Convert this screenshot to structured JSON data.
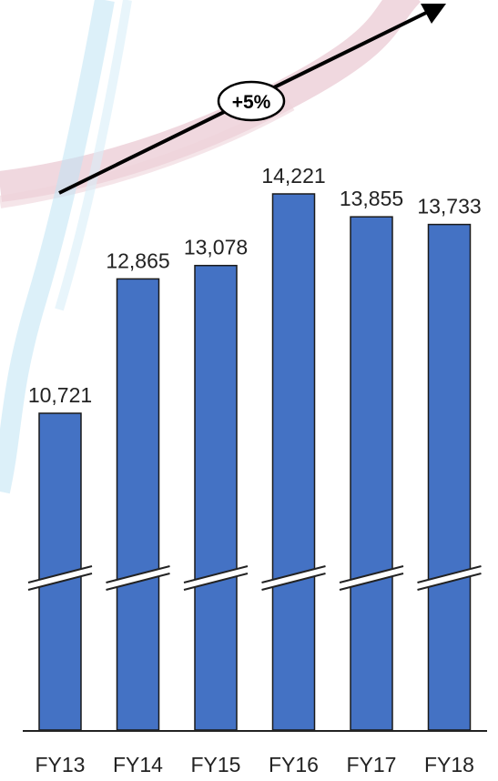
{
  "chart_data": {
    "type": "bar",
    "categories": [
      "FY13",
      "FY14",
      "FY15",
      "FY16",
      "FY17",
      "FY18"
    ],
    "values": [
      10721,
      12865,
      13078,
      14221,
      13855,
      13733
    ],
    "value_labels": [
      "10,721",
      "12,865",
      "13,078",
      "14,221",
      "13,855",
      "13,733"
    ],
    "title": "",
    "xlabel": "",
    "ylabel": "",
    "axis_break": true,
    "grid": false,
    "legend": "none",
    "annotation": {
      "text": "+5%",
      "style": "arrow trending up-right"
    },
    "colors": {
      "bar": "#4472C4",
      "bar_border": "#1a1a1a",
      "arrow": "#000000",
      "axis": "#222222"
    }
  }
}
